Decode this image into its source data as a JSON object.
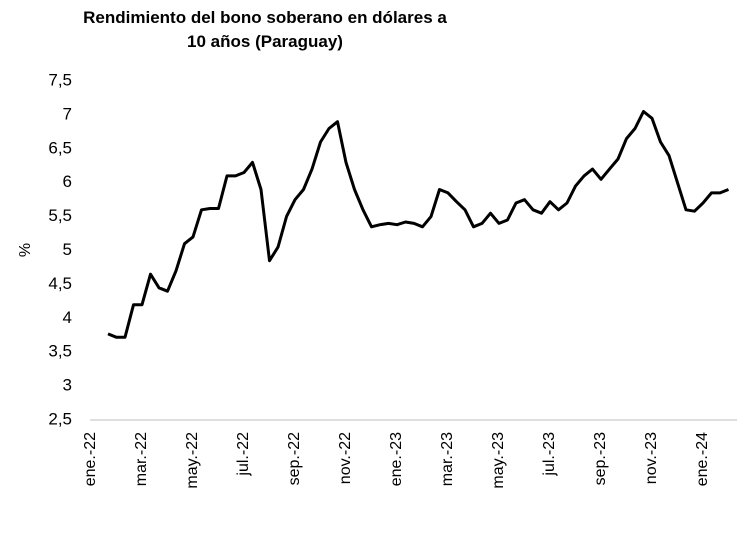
{
  "chart_data": {
    "type": "line",
    "title": "Rendimiento del bono soberano en dólares a 10 años (Paraguay)",
    "y_label": "%",
    "categories": [
      "ene.-22",
      null,
      null,
      null,
      null,
      null,
      "mar.-22",
      null,
      null,
      null,
      null,
      null,
      "may.-22",
      null,
      null,
      null,
      null,
      null,
      "jul.-22",
      null,
      null,
      null,
      null,
      null,
      "sep.-22",
      null,
      null,
      null,
      null,
      null,
      "nov.-22",
      null,
      null,
      null,
      null,
      null,
      "ene.-23",
      null,
      null,
      null,
      null,
      null,
      "mar.-23",
      null,
      null,
      null,
      null,
      null,
      "may.-23",
      null,
      null,
      null,
      null,
      null,
      "jul.-23",
      null,
      null,
      null,
      null,
      null,
      "sep.-23",
      null,
      null,
      null,
      null,
      null,
      "nov.-23",
      null,
      null,
      null,
      null,
      null,
      "ene.-24",
      null,
      null,
      null
    ],
    "series": [
      {
        "name": "Rendimiento",
        "color": "#000000",
        "values": [
          null,
          null,
          3.77,
          3.72,
          3.72,
          4.2,
          4.2,
          4.65,
          4.45,
          4.4,
          4.7,
          5.1,
          5.2,
          5.6,
          5.62,
          5.62,
          6.1,
          6.1,
          6.15,
          6.3,
          5.9,
          4.85,
          5.05,
          5.5,
          5.75,
          5.9,
          6.2,
          6.6,
          6.8,
          6.9,
          6.3,
          5.9,
          5.6,
          5.35,
          5.38,
          5.4,
          5.38,
          5.42,
          5.4,
          5.35,
          5.5,
          5.9,
          5.85,
          5.72,
          5.6,
          5.35,
          5.4,
          5.55,
          5.4,
          5.45,
          5.7,
          5.75,
          5.6,
          5.55,
          5.72,
          5.6,
          5.7,
          5.95,
          6.1,
          6.2,
          6.05,
          6.2,
          6.35,
          6.65,
          6.8,
          7.05,
          6.95,
          6.6,
          6.4,
          6.0,
          5.6,
          5.58,
          5.7,
          5.85,
          5.85,
          5.9
        ]
      }
    ],
    "ylim": [
      2.5,
      7.5
    ],
    "yticks": [
      {
        "value": 2.5,
        "label": "2,5"
      },
      3,
      {
        "value": 3.5,
        "label": "3,5"
      },
      4,
      {
        "value": 4.5,
        "label": "4,5"
      },
      5,
      {
        "value": 5.5,
        "label": "5,5"
      },
      6,
      {
        "value": 6.5,
        "label": "6,5"
      },
      7,
      {
        "value": 7.5,
        "label": "7,5"
      }
    ],
    "grid": false
  }
}
